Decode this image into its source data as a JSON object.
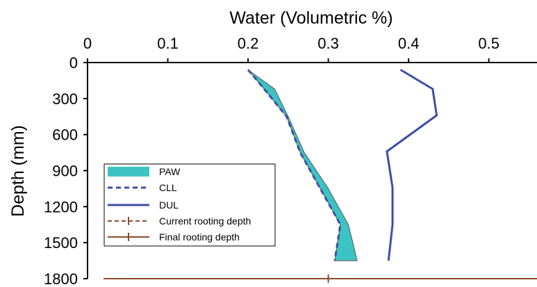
{
  "chart_data": {
    "type": "line",
    "title": "",
    "xlabel": "Water (Volumetric %)",
    "ylabel": "Depth (mm)",
    "x_axis_position": "top",
    "y_axis_inverted": true,
    "xlim": [
      0,
      0.56
    ],
    "ylim": [
      0,
      1800
    ],
    "x_ticks": [
      0,
      0.1,
      0.2,
      0.3,
      0.4,
      0.5
    ],
    "x_tick_labels": [
      "0",
      "0.1",
      "0.2",
      "0.3",
      "0.4",
      "0.5"
    ],
    "y_ticks": [
      0,
      300,
      600,
      900,
      1200,
      1500,
      1800
    ],
    "y_tick_labels": [
      "0",
      "300",
      "600",
      "900",
      "1200",
      "1500",
      "1800"
    ],
    "grid": false,
    "legend_placement": "bottom-left",
    "series": [
      {
        "name": "PAW",
        "style": "filled-area",
        "color": "#3cc4c4",
        "upper_x": [
          0.2,
          0.233,
          0.25,
          0.27,
          0.3,
          0.325,
          0.336
        ],
        "upper_y": [
          60,
          220,
          450,
          750,
          1050,
          1350,
          1650
        ],
        "lower_x": [
          0.2,
          0.22,
          0.248,
          0.265,
          0.29,
          0.315,
          0.308
        ],
        "lower_y": [
          60,
          220,
          450,
          750,
          1050,
          1350,
          1650
        ]
      },
      {
        "name": "CLL",
        "style": "dashed",
        "color": "#3b4fa8",
        "x": [
          0.2,
          0.22,
          0.248,
          0.265,
          0.29,
          0.315,
          0.308
        ],
        "y": [
          60,
          220,
          450,
          750,
          1050,
          1350,
          1650
        ]
      },
      {
        "name": "DUL",
        "style": "solid",
        "color": "#3b4fa8",
        "x": [
          0.39,
          0.43,
          0.435,
          0.373,
          0.38,
          0.38,
          0.375
        ],
        "y": [
          60,
          220,
          440,
          740,
          1040,
          1350,
          1650
        ]
      },
      {
        "name": "Current rooting depth",
        "style": "dashed-marker",
        "color": "#8b4a2b"
      },
      {
        "name": "Final rooting depth",
        "style": "solid-marker",
        "color": "#8b4a2b",
        "x": [
          0.02,
          0.56
        ],
        "y": [
          1800,
          1800
        ],
        "marker_x": 0.3
      }
    ]
  }
}
